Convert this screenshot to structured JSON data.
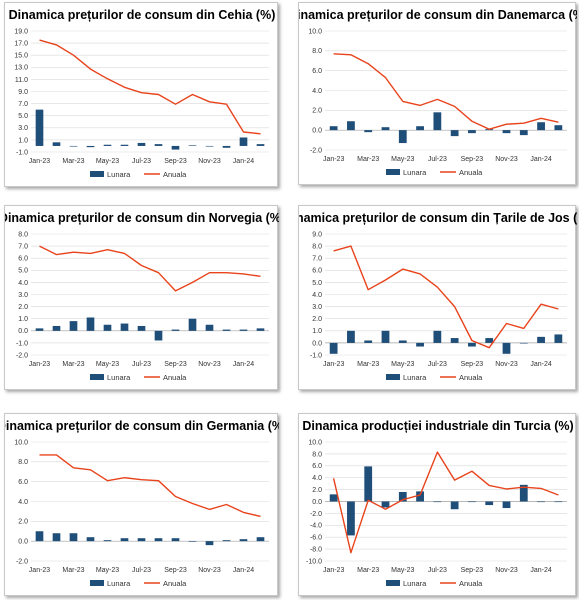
{
  "colors": {
    "bar": "#1f4e79",
    "line": "#e8431b",
    "grid": "#d9d9d9"
  },
  "chart_data": [
    {
      "type": "bar+line",
      "title": "Dinamica prețurilor de consum din Cehia (%)",
      "ylim": [
        -1,
        19
      ],
      "yticks": [
        "-1.0",
        "1.0",
        "3.0",
        "5.0",
        "7.0",
        "9.0",
        "11.0",
        "13.0",
        "15.0",
        "17.0",
        "19.0"
      ],
      "ytick_values": [
        -1,
        1,
        3,
        5,
        7,
        9,
        11,
        13,
        15,
        17,
        19
      ],
      "x_tick_labels": [
        "Jan-23",
        "Mar-23",
        "May-23",
        "Jul-23",
        "Sep-23",
        "Nov-23",
        "Jan-24"
      ],
      "x": [
        "Jan-23",
        "Feb-23",
        "Mar-23",
        "Apr-23",
        "May-23",
        "Jun-23",
        "Jul-23",
        "Aug-23",
        "Sep-23",
        "Oct-23",
        "Nov-23",
        "Dec-23",
        "Jan-24",
        "Feb-24"
      ],
      "series": [
        {
          "name": "Lunara",
          "kind": "bar",
          "values": [
            6.0,
            0.6,
            0.0,
            -0.2,
            0.2,
            0.2,
            0.5,
            0.3,
            -0.6,
            0.1,
            0.0,
            -0.3,
            1.4,
            0.3
          ]
        },
        {
          "name": "Anuala",
          "kind": "line",
          "values": [
            17.5,
            16.7,
            15.0,
            12.7,
            11.1,
            9.7,
            8.8,
            8.5,
            6.9,
            8.5,
            7.3,
            6.9,
            2.3,
            2.0
          ]
        }
      ],
      "legend": "bottom"
    },
    {
      "type": "bar+line",
      "title": "Dinamica prețurilor de consum din Danemarca (%)",
      "ylim": [
        -2,
        10
      ],
      "yticks": [
        "-2.0",
        "0.0",
        "2.0",
        "4.0",
        "6.0",
        "8.0",
        "10.0"
      ],
      "ytick_values": [
        -2,
        0,
        2,
        4,
        6,
        8,
        10
      ],
      "x_tick_labels": [
        "Jan-23",
        "Mar-23",
        "May-23",
        "Jul-23",
        "Sep-23",
        "Nov-23",
        "Jan-24"
      ],
      "x": [
        "Jan-23",
        "Feb-23",
        "Mar-23",
        "Apr-23",
        "May-23",
        "Jun-23",
        "Jul-23",
        "Aug-23",
        "Sep-23",
        "Oct-23",
        "Nov-23",
        "Dec-23",
        "Jan-24",
        "Feb-24"
      ],
      "series": [
        {
          "name": "Lunara",
          "kind": "bar",
          "values": [
            0.4,
            0.9,
            -0.2,
            0.3,
            -1.3,
            0.4,
            1.8,
            -0.6,
            -0.3,
            0.1,
            -0.3,
            -0.5,
            0.8,
            0.5
          ]
        },
        {
          "name": "Anuala",
          "kind": "line",
          "values": [
            7.7,
            7.6,
            6.7,
            5.3,
            2.9,
            2.5,
            3.1,
            2.4,
            0.9,
            0.1,
            0.6,
            0.7,
            1.2,
            0.8
          ]
        }
      ],
      "legend": "bottom"
    },
    {
      "type": "bar+line",
      "title": "Dinamica prețurilor de consum din Norvegia (%)",
      "ylim": [
        -2,
        8
      ],
      "yticks": [
        "-2.0",
        "-1.0",
        "0.0",
        "1.0",
        "2.0",
        "3.0",
        "4.0",
        "5.0",
        "6.0",
        "7.0",
        "8.0"
      ],
      "ytick_values": [
        -2,
        -1,
        0,
        1,
        2,
        3,
        4,
        5,
        6,
        7,
        8
      ],
      "x_tick_labels": [
        "Jan-23",
        "Mar-23",
        "May-23",
        "Jul-23",
        "Sep-23",
        "Nov-23",
        "Jan-24"
      ],
      "x": [
        "Jan-23",
        "Feb-23",
        "Mar-23",
        "Apr-23",
        "May-23",
        "Jun-23",
        "Jul-23",
        "Aug-23",
        "Sep-23",
        "Oct-23",
        "Nov-23",
        "Dec-23",
        "Jan-24",
        "Feb-24"
      ],
      "series": [
        {
          "name": "Lunara",
          "kind": "bar",
          "values": [
            0.2,
            0.4,
            0.8,
            1.1,
            0.5,
            0.6,
            0.4,
            -0.8,
            0.1,
            1.0,
            0.5,
            0.1,
            0.1,
            0.2
          ]
        },
        {
          "name": "Anuala",
          "kind": "line",
          "values": [
            7.0,
            6.3,
            6.5,
            6.4,
            6.7,
            6.4,
            5.4,
            4.8,
            3.3,
            4.0,
            4.8,
            4.8,
            4.7,
            4.5
          ]
        }
      ],
      "legend": "bottom"
    },
    {
      "type": "bar+line",
      "title": "Dinamica prețurilor de consum din Țarile de Jos (%)",
      "ylim": [
        -1,
        9
      ],
      "yticks": [
        "-1.0",
        "0.0",
        "1.0",
        "2.0",
        "3.0",
        "4.0",
        "5.0",
        "6.0",
        "7.0",
        "8.0",
        "9.0"
      ],
      "ytick_values": [
        -1,
        0,
        1,
        2,
        3,
        4,
        5,
        6,
        7,
        8,
        9
      ],
      "x_tick_labels": [
        "Jan-23",
        "Mar-23",
        "May-23",
        "Jul-23",
        "Sep-23",
        "Nov-23",
        "Jan-24"
      ],
      "x": [
        "Jan-23",
        "Feb-23",
        "Mar-23",
        "Apr-23",
        "May-23",
        "Jun-23",
        "Jul-23",
        "Aug-23",
        "Sep-23",
        "Oct-23",
        "Nov-23",
        "Dec-23",
        "Jan-24",
        "Feb-24"
      ],
      "series": [
        {
          "name": "Lunara",
          "kind": "bar",
          "values": [
            -0.9,
            1.0,
            0.2,
            1.0,
            0.2,
            -0.3,
            1.0,
            0.4,
            -0.3,
            0.4,
            -0.9,
            0.0,
            0.5,
            0.7
          ]
        },
        {
          "name": "Anuala",
          "kind": "line",
          "values": [
            7.6,
            8.0,
            4.4,
            5.2,
            6.1,
            5.7,
            4.6,
            3.0,
            0.2,
            -0.4,
            1.6,
            1.2,
            3.2,
            2.8
          ]
        }
      ],
      "legend": "bottom"
    },
    {
      "type": "bar+line",
      "title": "Dinamica prețurilor de consum din Germania (%)",
      "ylim": [
        -2,
        10
      ],
      "yticks": [
        "-2.0",
        "0.0",
        "2.0",
        "4.0",
        "6.0",
        "8.0",
        "10.0"
      ],
      "ytick_values": [
        -2,
        0,
        2,
        4,
        6,
        8,
        10
      ],
      "x_tick_labels": [
        "Jan-23",
        "Mar-23",
        "May-23",
        "Jul-23",
        "Sep-23",
        "Nov-23",
        "Jan-24"
      ],
      "x": [
        "Jan-23",
        "Feb-23",
        "Mar-23",
        "Apr-23",
        "May-23",
        "Jun-23",
        "Jul-23",
        "Aug-23",
        "Sep-23",
        "Oct-23",
        "Nov-23",
        "Dec-23",
        "Jan-24",
        "Feb-24"
      ],
      "series": [
        {
          "name": "Lunara",
          "kind": "bar",
          "values": [
            1.0,
            0.8,
            0.8,
            0.4,
            0.1,
            0.3,
            0.3,
            0.3,
            0.3,
            0.0,
            -0.4,
            0.1,
            0.2,
            0.4
          ]
        },
        {
          "name": "Anuala",
          "kind": "line",
          "values": [
            8.7,
            8.7,
            7.4,
            7.2,
            6.1,
            6.4,
            6.2,
            6.1,
            4.5,
            3.8,
            3.2,
            3.7,
            2.9,
            2.5
          ]
        }
      ],
      "legend": "bottom"
    },
    {
      "type": "bar+line",
      "title": "Dinamica producției industriale din Turcia (%)",
      "ylim": [
        -10,
        10
      ],
      "yticks": [
        "-10.0",
        "-8.0",
        "-6.0",
        "-4.0",
        "-2.0",
        "0.0",
        "2.0",
        "4.0",
        "6.0",
        "8.0",
        "10.0"
      ],
      "ytick_values": [
        -10,
        -8,
        -6,
        -4,
        -2,
        0,
        2,
        4,
        6,
        8,
        10
      ],
      "x_tick_labels": [
        "Jan-23",
        "Mar-23",
        "May-23",
        "Jul-23",
        "Sep-23",
        "Nov-23",
        "Jan-24"
      ],
      "x": [
        "Jan-23",
        "Feb-23",
        "Mar-23",
        "Apr-23",
        "May-23",
        "Jun-23",
        "Jul-23",
        "Aug-23",
        "Sep-23",
        "Oct-23",
        "Nov-23",
        "Dec-23",
        "Jan-24",
        "Feb-24"
      ],
      "series": [
        {
          "name": "Lunara",
          "kind": "bar",
          "values": [
            1.2,
            -5.7,
            5.9,
            -1.0,
            1.6,
            1.7,
            -0.1,
            -1.3,
            0.0,
            -0.6,
            -1.1,
            2.8,
            0.0,
            0.0
          ]
        },
        {
          "name": "Anuala",
          "kind": "line",
          "values": [
            3.9,
            -8.6,
            0.2,
            -1.3,
            0.3,
            1.1,
            8.3,
            3.6,
            5.1,
            2.7,
            2.1,
            2.4,
            2.2,
            1.1
          ]
        }
      ],
      "legend": "bottom"
    }
  ]
}
